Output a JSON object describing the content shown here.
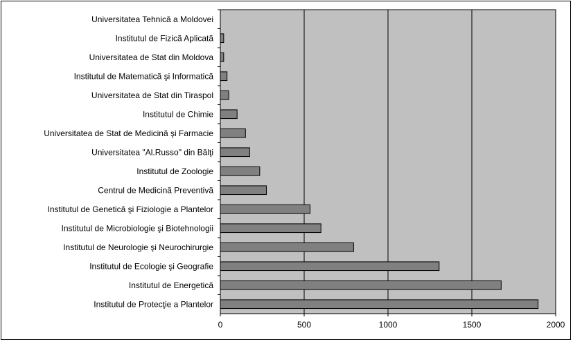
{
  "chart_data": {
    "type": "bar",
    "orientation": "horizontal",
    "categories": [
      "Universitatea Tehnică a Moldovei",
      "Institutul de Fizică Aplicată",
      "Universitatea de Stat din Moldova",
      "Institutul de Matematică şi Informatică",
      "Universitatea de Stat din Tiraspol",
      "Institutul de Chimie",
      "Universitatea de Stat de Medicină şi Farmacie",
      "Universitatea \"Al.Russo\" din Bălţi",
      "Institutul de Zoologie",
      "Centrul de Medicină Preventivă",
      "Institutul de Genetică şi Fiziologie a Plantelor",
      "Institutul de Microbiologie şi Biotehnologii",
      "Institutul de Neurologie şi Neurochirurgie",
      "Institutul de Ecologie şi Geografie",
      "Institutul de Energetică",
      "Institutul de Protecţie a Plantelor"
    ],
    "values": [
      0,
      20,
      20,
      40,
      50,
      100,
      150,
      175,
      235,
      275,
      535,
      600,
      795,
      1305,
      1675,
      1895
    ],
    "xlim": [
      0,
      2000
    ],
    "xticks": [
      "0",
      "500",
      "1000",
      "1500",
      "2000"
    ],
    "grid": "vertical",
    "title": "",
    "xlabel": "",
    "ylabel": "",
    "colors": {
      "plot_background": "#c0c0c0",
      "bar_fill": "#808080",
      "bar_edge": "#000000",
      "gridline": "#000000"
    }
  }
}
